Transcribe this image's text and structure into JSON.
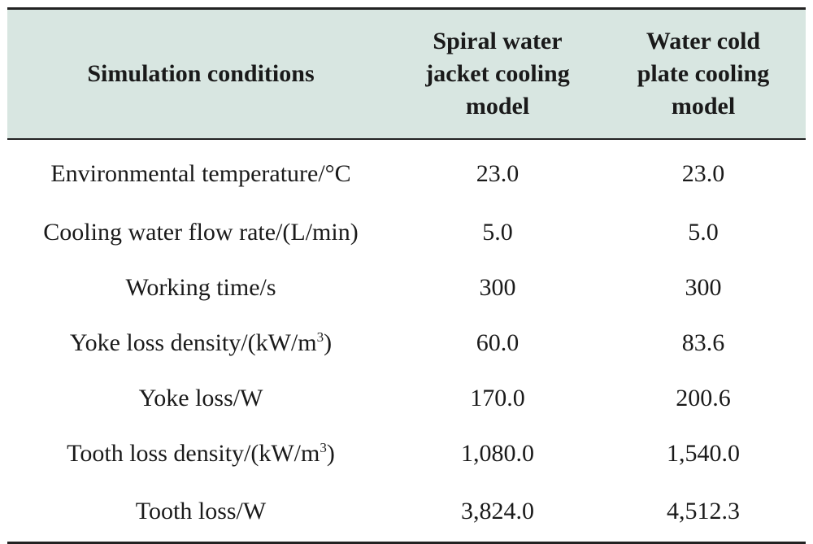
{
  "table": {
    "headers": [
      [
        "Simulation conditions"
      ],
      [
        "Spiral water",
        "jacket cooling",
        "model"
      ],
      [
        "Water cold",
        "plate cooling",
        "model"
      ]
    ],
    "rows": [
      {
        "label": "Environmental temperature/°C",
        "label_sup": "",
        "label_tail": "",
        "spiral": "23.0",
        "cold_plate": "23.0"
      },
      {
        "label": "Cooling water flow rate/(L/min)",
        "label_sup": "",
        "label_tail": "",
        "spiral": "5.0",
        "cold_plate": "5.0"
      },
      {
        "label": "Working time/s",
        "label_sup": "",
        "label_tail": "",
        "spiral": "300",
        "cold_plate": "300"
      },
      {
        "label": "Yoke loss density/(kW/m",
        "label_sup": "3",
        "label_tail": ")",
        "spiral": "60.0",
        "cold_plate": "83.6"
      },
      {
        "label": "Yoke loss/W",
        "label_sup": "",
        "label_tail": "",
        "spiral": "170.0",
        "cold_plate": "200.6"
      },
      {
        "label": "Tooth loss density/(kW/m",
        "label_sup": "3",
        "label_tail": ")",
        "spiral": "1,080.0",
        "cold_plate": "1,540.0"
      },
      {
        "label": "Tooth loss/W",
        "label_sup": "",
        "label_tail": "",
        "spiral": "3,824.0",
        "cold_plate": "4,512.3"
      }
    ]
  },
  "colors": {
    "header_background": "#d8e6e1",
    "rule": "#222222",
    "text": "#1a1a1a"
  }
}
